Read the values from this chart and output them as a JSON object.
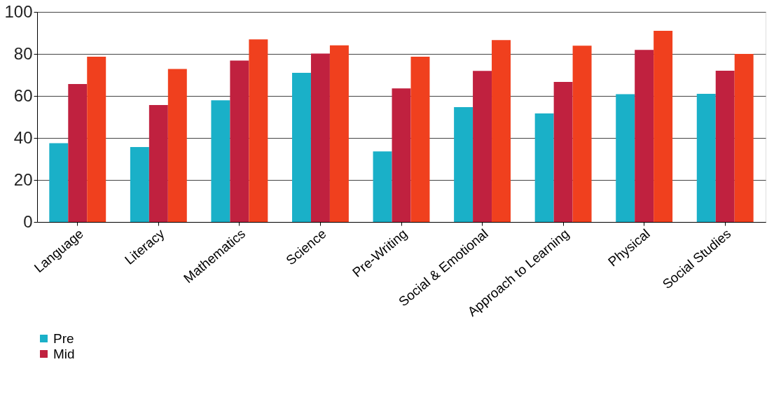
{
  "chart_data": {
    "type": "bar",
    "categories": [
      "Language",
      "Literacy",
      "Mathematics",
      "Science",
      "Pre-Writing",
      "Social & Emotional",
      "Approach to Learning",
      "Physical",
      "Social Studies"
    ],
    "series": [
      {
        "name": "Pre",
        "color": "#1ab0c8",
        "values": [
          37.5,
          35.7,
          57.9,
          71,
          33.6,
          54.7,
          51.7,
          60.8,
          61
        ]
      },
      {
        "name": "Mid",
        "color": "#c0213f",
        "values": [
          65.7,
          55.7,
          76.8,
          80.2,
          63.6,
          71.9,
          66.7,
          81.9,
          72
        ]
      },
      {
        "color": "#f0401e",
        "values": [
          78.7,
          72.8,
          86.9,
          84.1,
          78.7,
          86.6,
          83.9,
          91,
          80
        ]
      }
    ],
    "ylim": [
      0,
      100
    ],
    "yticks": [
      0,
      20,
      40,
      60,
      80,
      100
    ],
    "grid": "y",
    "legend": "bottom"
  }
}
